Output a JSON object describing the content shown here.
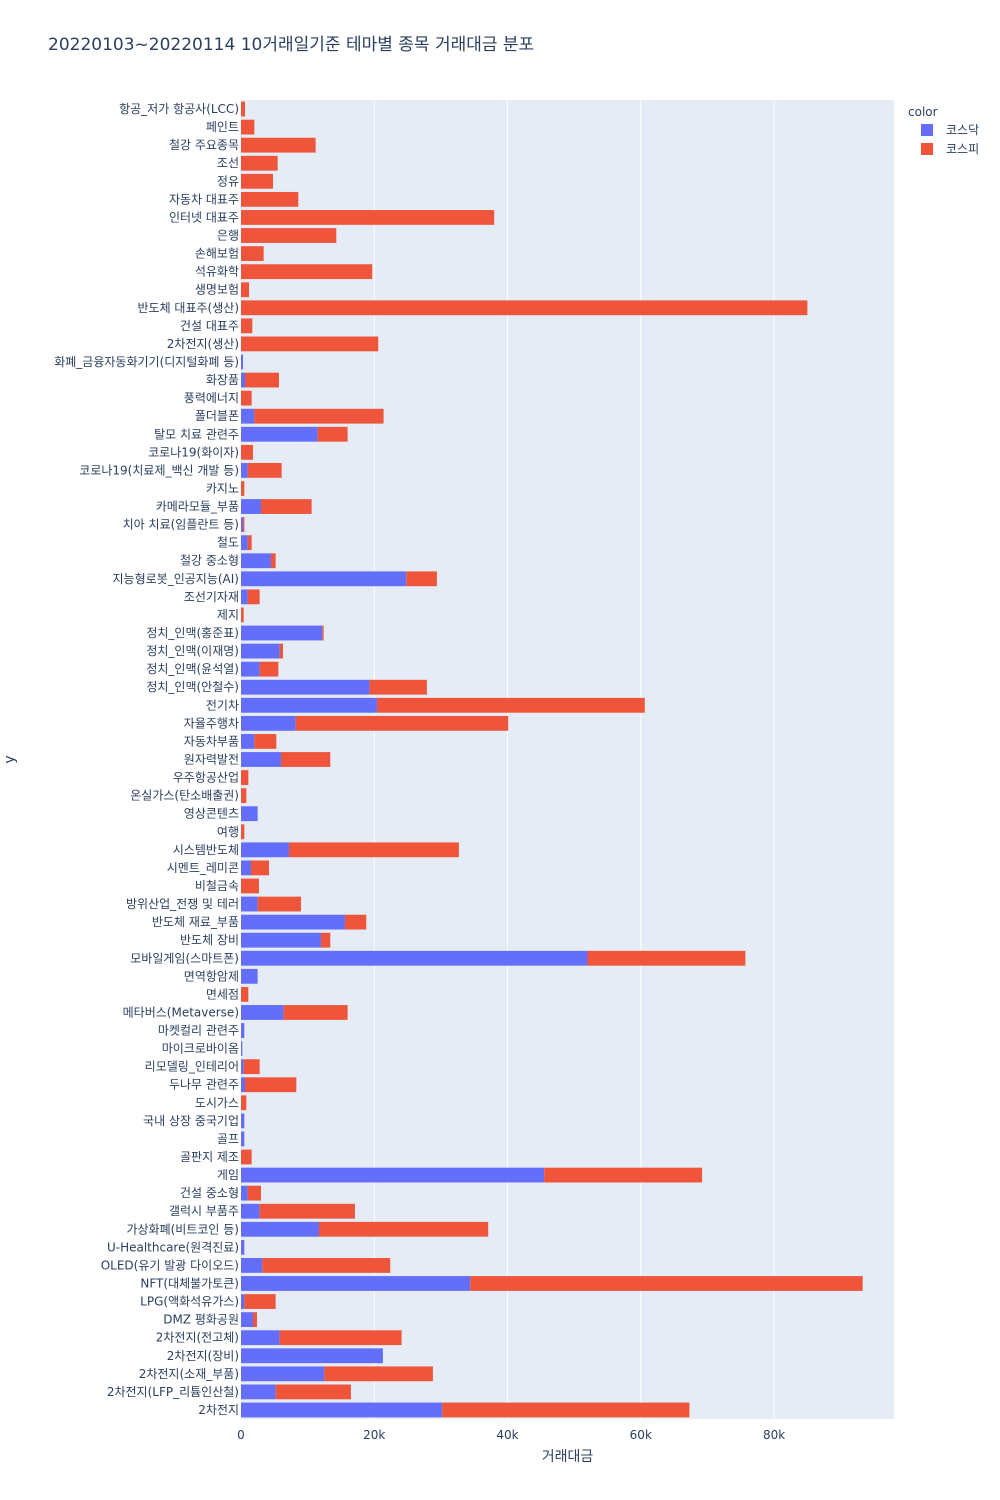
{
  "chart_data": {
    "type": "bar",
    "orientation": "horizontal",
    "barmode": "stack",
    "title": "20220103~20220114 10거래일기준 테마별 종목 거래대금 분포",
    "xlabel": "거래대금",
    "ylabel": "y",
    "xlim": [
      0,
      98000
    ],
    "x_ticks": [
      0,
      20000,
      40000,
      60000,
      80000
    ],
    "x_tick_labels": [
      "0",
      "20k",
      "40k",
      "60k",
      "80k"
    ],
    "grid": true,
    "legend": {
      "title": "color",
      "placement": "top-right"
    },
    "categories": [
      "항공_저가 항공사(LCC)",
      "페인트",
      "철강 주요종목",
      "조선",
      "정유",
      "자동차 대표주",
      "인터넷 대표주",
      "은행",
      "손해보험",
      "석유화학",
      "생명보험",
      "반도체 대표주(생산)",
      "건설 대표주",
      "2차전지(생산)",
      "화폐_금융자동화기기(디지털화폐 등)",
      "화장품",
      "풍력에너지",
      "폴더블폰",
      "탈모 치료 관련주",
      "코로나19(화이자)",
      "코로나19(치료제_백신 개발 등)",
      "카지노",
      "카메라모듈_부품",
      "치아 치료(임플란트 등)",
      "철도",
      "철강 중소형",
      "지능형로봇_인공지능(AI)",
      "조선기자재",
      "제지",
      "정치_인맥(홍준표)",
      "정치_인맥(이재명)",
      "정치_인맥(윤석열)",
      "정치_인맥(안철수)",
      "전기차",
      "자율주행차",
      "자동차부품",
      "원자력발전",
      "우주항공산업",
      "온실가스(탄소배출권)",
      "영상콘텐츠",
      "여행",
      "시스템반도체",
      "시멘트_레미콘",
      "비철금속",
      "방위산업_전쟁 및 테러",
      "반도체 재료_부품",
      "반도체 장비",
      "모바일게임(스마트폰)",
      "면역항암제",
      "면세점",
      "메타버스(Metaverse)",
      "마켓컬리 관련주",
      "마이크로바이옴",
      "리모델링_인테리어",
      "두나무 관련주",
      "도시가스",
      "국내 상장 중국기업",
      "골프",
      "골판지 제조",
      "게임",
      "건설 중소형",
      "갤럭시 부품주",
      "가상화폐(비트코인 등)",
      "U-Healthcare(원격진료)",
      "OLED(유기 발광 다이오드)",
      "NFT(대체불가토큰)",
      "LPG(액화석유가스)",
      "DMZ 평화공원",
      "2차전지(전고체)",
      "2차전지(장비)",
      "2차전지(소재_부품)",
      "2차전지(LFP_리튬인산철)",
      "2차전지"
    ],
    "series": [
      {
        "name": "코스닥",
        "color": "#636efa",
        "values": [
          0,
          0,
          0,
          0,
          0,
          0,
          0,
          0,
          0,
          0,
          0,
          0,
          0,
          0,
          300,
          600,
          0,
          2000,
          11500,
          0,
          1000,
          0,
          3000,
          300,
          1000,
          4500,
          24800,
          1000,
          0,
          12200,
          5800,
          2800,
          19300,
          20400,
          8200,
          2000,
          6000,
          0,
          0,
          2500,
          0,
          7200,
          1500,
          0,
          2500,
          15600,
          12000,
          52000,
          2500,
          0,
          6400,
          500,
          200,
          400,
          600,
          0,
          500,
          500,
          0,
          45500,
          1000,
          2800,
          11700,
          500,
          3200,
          34400,
          500,
          1800,
          5800,
          21300,
          12500,
          5200,
          30200
        ]
      },
      {
        "name": "코스피",
        "color": "#ef553b",
        "values": [
          600,
          2000,
          11200,
          5500,
          4800,
          8600,
          38000,
          14300,
          3400,
          19700,
          1200,
          85000,
          1700,
          20600,
          0,
          5100,
          1600,
          19400,
          4500,
          1800,
          5100,
          500,
          7600,
          200,
          600,
          700,
          4600,
          1800,
          400,
          200,
          500,
          2800,
          8600,
          40200,
          31900,
          3300,
          7400,
          1100,
          800,
          0,
          500,
          25500,
          2700,
          2700,
          6500,
          3200,
          1400,
          23700,
          0,
          1100,
          9600,
          0,
          0,
          2400,
          7700,
          800,
          0,
          0,
          1600,
          23700,
          2000,
          14300,
          25400,
          0,
          19200,
          58900,
          4700,
          600,
          18300,
          0,
          16300,
          11300,
          37100
        ]
      }
    ]
  }
}
